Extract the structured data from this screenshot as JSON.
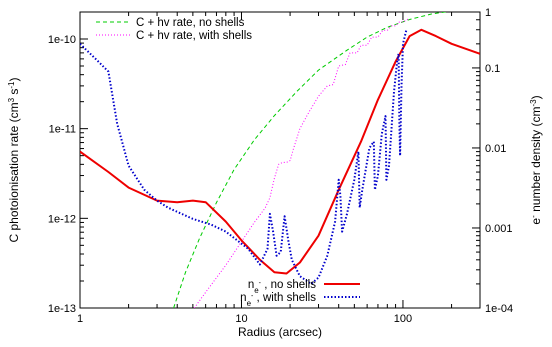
{
  "chart_data": {
    "type": "line",
    "xlabel": "Radius (arcsec)",
    "ylabel_left": "C photoionisation rate (cm^3 s^-1)",
    "ylabel_right": "e^- number density (cm^-3)",
    "x_scale": "log",
    "y_left_scale": "log",
    "y_right_scale": "log",
    "xlim": [
      1,
      300
    ],
    "ylim_left": [
      1e-13,
      2e-10
    ],
    "ylim_right": [
      0.0001,
      0.5
    ],
    "x_ticks": [
      {
        "value": 1,
        "label": "1"
      },
      {
        "value": 10,
        "label": "10"
      },
      {
        "value": 100,
        "label": "100"
      }
    ],
    "y_left_ticks": [
      {
        "value": 1e-13,
        "label": "1e-13"
      },
      {
        "value": 1e-12,
        "label": "1e-12"
      },
      {
        "value": 1e-11,
        "label": "1e-11"
      },
      {
        "value": 1e-10,
        "label": "1e-10"
      }
    ],
    "y_right_ticks": [
      {
        "value": 0.0001,
        "label": "1e-04"
      },
      {
        "value": 0.001,
        "label": "0.001"
      },
      {
        "value": 0.01,
        "label": "0.01"
      },
      {
        "value": 0.1,
        "label": "0.1"
      },
      {
        "value": 1,
        "label": "1"
      }
    ],
    "legend": {
      "top_left": [
        "C + hv rate, no shells",
        "C + hv rate, with shells"
      ],
      "bottom_right": [
        "n_e^- , no shells",
        "n_e^- , with shells"
      ]
    },
    "series": [
      {
        "name": "C + hv rate, no shells",
        "axis": "left",
        "color": "#00cc00",
        "dash": "dashed",
        "points": [
          [
            3.8,
            1e-13
          ],
          [
            4.5,
            2.5e-13
          ],
          [
            5.5,
            6e-13
          ],
          [
            7,
            1.5e-12
          ],
          [
            9,
            3.5e-12
          ],
          [
            12,
            7.5e-12
          ],
          [
            16,
            1.4e-11
          ],
          [
            22,
            2.6e-11
          ],
          [
            30,
            4.5e-11
          ],
          [
            45,
            7.5e-11
          ],
          [
            60,
            1.05e-10
          ],
          [
            80,
            1.35e-10
          ],
          [
            110,
            1.65e-10
          ],
          [
            150,
            1.9e-10
          ],
          [
            200,
            2.05e-10
          ],
          [
            300,
            2.2e-10
          ]
        ]
      },
      {
        "name": "C + hv rate, with shells",
        "axis": "left",
        "color": "#ff00ff",
        "dash": "dotted",
        "points": [
          [
            5.1,
            1e-13
          ],
          [
            6,
            1.5e-13
          ],
          [
            8,
            3e-13
          ],
          [
            10,
            5.5e-13
          ],
          [
            12,
            9e-13
          ],
          [
            14,
            1.3e-12
          ],
          [
            15,
            1.7e-12
          ],
          [
            16,
            2.8e-12
          ],
          [
            17,
            4e-12
          ],
          [
            18,
            4.2e-12
          ],
          [
            19,
            4.2e-12
          ],
          [
            20,
            4.4e-12
          ],
          [
            21,
            6e-12
          ],
          [
            23,
            1e-11
          ],
          [
            26,
            1.5e-11
          ],
          [
            30,
            2.3e-11
          ],
          [
            34,
            3e-11
          ],
          [
            37,
            3.1e-11
          ],
          [
            40,
            5e-11
          ],
          [
            44,
            5.2e-11
          ],
          [
            47,
            7e-11
          ],
          [
            52,
            7e-11
          ],
          [
            55,
            8.5e-11
          ],
          [
            60,
            8.5e-11
          ],
          [
            64,
            1.05e-10
          ],
          [
            70,
            1.05e-10
          ],
          [
            75,
            1.25e-10
          ],
          [
            80,
            1.25e-10
          ],
          [
            85,
            1.4e-10
          ],
          [
            90,
            1.4e-10
          ],
          [
            95,
            1.55e-10
          ],
          [
            100,
            1.55e-10
          ],
          [
            110,
            1.7e-10
          ]
        ]
      },
      {
        "name": "n_e^- , no shells",
        "axis": "right",
        "color": "#ee0000",
        "dash": "solid",
        "points": [
          [
            1,
            0.009
          ],
          [
            1.5,
            0.005
          ],
          [
            2,
            0.0032
          ],
          [
            3,
            0.0022
          ],
          [
            4,
            0.0021
          ],
          [
            5,
            0.0022
          ],
          [
            6,
            0.0021
          ],
          [
            8,
            0.0012
          ],
          [
            10,
            0.0007
          ],
          [
            13,
            0.0004
          ],
          [
            16,
            0.00028
          ],
          [
            19,
            0.00027
          ],
          [
            23,
            0.00037
          ],
          [
            30,
            0.0008
          ],
          [
            40,
            0.003
          ],
          [
            55,
            0.012
          ],
          [
            70,
            0.04
          ],
          [
            90,
            0.12
          ],
          [
            110,
            0.25
          ],
          [
            130,
            0.3
          ],
          [
            160,
            0.25
          ],
          [
            200,
            0.2
          ],
          [
            300,
            0.15
          ]
        ]
      },
      {
        "name": "n_e^- , with shells",
        "axis": "right",
        "color": "#0000cc",
        "dash": "dotted",
        "points": [
          [
            1,
            0.2
          ],
          [
            1.3,
            0.12
          ],
          [
            1.5,
            0.09
          ],
          [
            1.7,
            0.02
          ],
          [
            2,
            0.006
          ],
          [
            2.5,
            0.003
          ],
          [
            3,
            0.0022
          ],
          [
            3.5,
            0.0018
          ],
          [
            5,
            0.0013
          ],
          [
            6.5,
            0.0011
          ],
          [
            8,
            0.0009
          ],
          [
            11,
            0.00055
          ],
          [
            13,
            0.00035
          ],
          [
            14.5,
            0.00055
          ],
          [
            15,
            0.0015
          ],
          [
            15.7,
            0.0009
          ],
          [
            16.5,
            0.00045
          ],
          [
            17.5,
            0.0005
          ],
          [
            18.5,
            0.0014
          ],
          [
            19.5,
            0.0007
          ],
          [
            20.5,
            0.0004
          ],
          [
            23,
            0.00025
          ],
          [
            27,
            0.0002
          ],
          [
            30,
            0.00024
          ],
          [
            34,
            0.00045
          ],
          [
            38,
            0.0012
          ],
          [
            40,
            0.004
          ],
          [
            41,
            0.0025
          ],
          [
            42,
            0.0009
          ],
          [
            45,
            0.0015
          ],
          [
            50,
            0.004
          ],
          [
            53,
            0.009
          ],
          [
            54,
            0.0018
          ],
          [
            56,
            0.003
          ],
          [
            62,
            0.01
          ],
          [
            66,
            0.012
          ],
          [
            67,
            0.003
          ],
          [
            70,
            0.0045
          ],
          [
            74,
            0.015
          ],
          [
            78,
            0.025
          ],
          [
            79,
            0.004
          ],
          [
            82,
            0.006
          ],
          [
            88,
            0.05
          ],
          [
            92,
            0.12
          ],
          [
            94,
            0.15
          ],
          [
            95,
            0.02
          ],
          [
            96,
            0.008
          ],
          [
            98,
            0.06
          ],
          [
            100,
            0.2
          ],
          [
            105,
            0.3
          ]
        ]
      }
    ]
  }
}
